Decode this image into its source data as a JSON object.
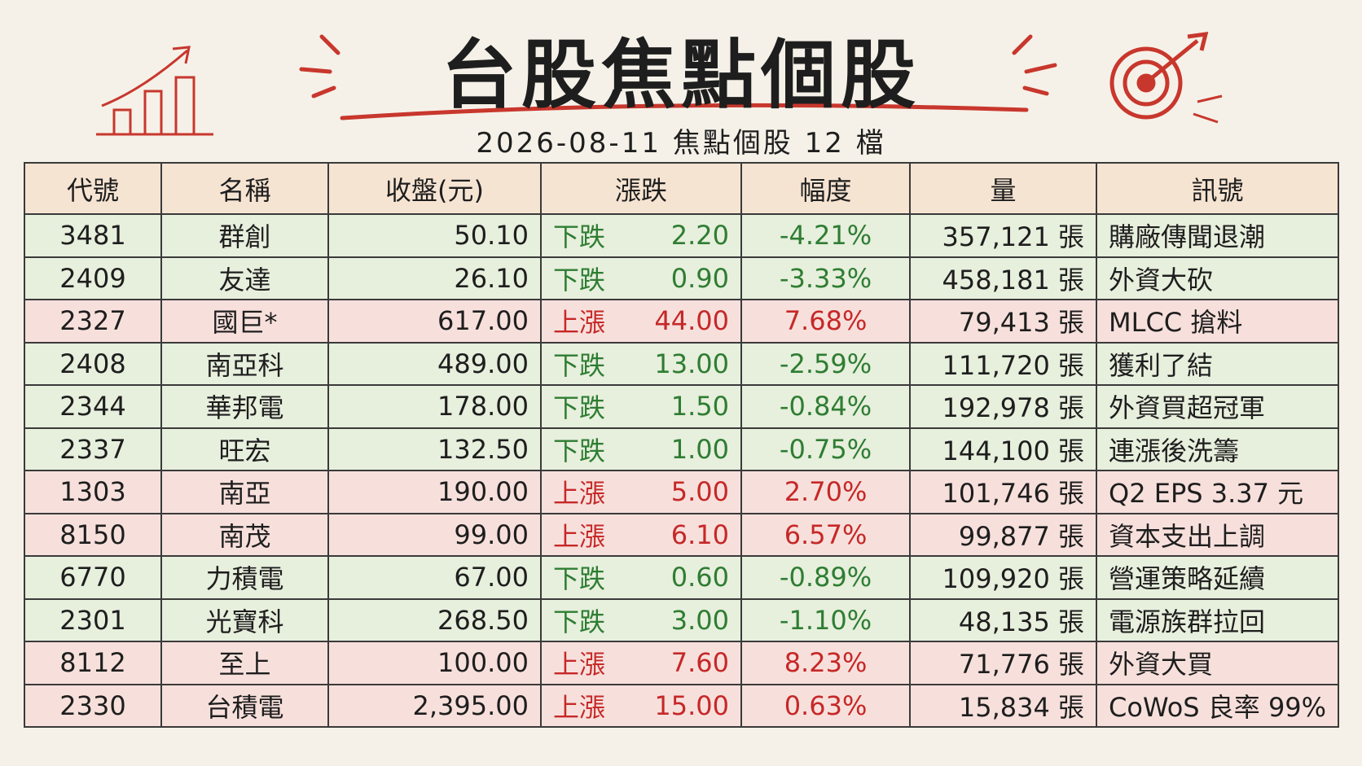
{
  "header": {
    "title": "台股焦點個股",
    "subtitle": "2026-08-11 焦點個股 12 檔"
  },
  "table": {
    "columns": [
      "代號",
      "名稱",
      "收盤(元)",
      "漲跌",
      "幅度",
      "量",
      "訊號"
    ],
    "header_fill": "#f6e4d2",
    "rows": [
      {
        "cells": [
          "3481",
          "群創",
          "50.10",
          "下跌",
          "2.20",
          "-4.21%",
          "357,121 張",
          "購廠傳聞退潮"
        ],
        "fill": "#e7efdd",
        "color": "#2e7d32"
      },
      {
        "cells": [
          "2409",
          "友達",
          "26.10",
          "下跌",
          "0.90",
          "-3.33%",
          "458,181 張",
          "外資大砍"
        ],
        "fill": "#e7efdd",
        "color": "#2e7d32"
      },
      {
        "cells": [
          "2327",
          "國巨*",
          "617.00",
          "上漲",
          "44.00",
          "7.68%",
          "79,413 張",
          "MLCC 搶料"
        ],
        "fill": "#f7e0dc",
        "color": "#c62828"
      },
      {
        "cells": [
          "2408",
          "南亞科",
          "489.00",
          "下跌",
          "13.00",
          "-2.59%",
          "111,720 張",
          "獲利了結"
        ],
        "fill": "#e7efdd",
        "color": "#2e7d32"
      },
      {
        "cells": [
          "2344",
          "華邦電",
          "178.00",
          "下跌",
          "1.50",
          "-0.84%",
          "192,978 張",
          "外資買超冠軍"
        ],
        "fill": "#e7efdd",
        "color": "#2e7d32"
      },
      {
        "cells": [
          "2337",
          "旺宏",
          "132.50",
          "下跌",
          "1.00",
          "-0.75%",
          "144,100 張",
          "連漲後洗籌"
        ],
        "fill": "#e7efdd",
        "color": "#2e7d32"
      },
      {
        "cells": [
          "1303",
          "南亞",
          "190.00",
          "上漲",
          "5.00",
          "2.70%",
          "101,746 張",
          "Q2 EPS 3.37 元"
        ],
        "fill": "#f7e0dc",
        "color": "#c62828"
      },
      {
        "cells": [
          "8150",
          "南茂",
          "99.00",
          "上漲",
          "6.10",
          "6.57%",
          "99,877 張",
          "資本支出上調"
        ],
        "fill": "#f7e0dc",
        "color": "#c62828"
      },
      {
        "cells": [
          "6770",
          "力積電",
          "67.00",
          "下跌",
          "0.60",
          "-0.89%",
          "109,920 張",
          "營運策略延續"
        ],
        "fill": "#e7efdd",
        "color": "#2e7d32"
      },
      {
        "cells": [
          "2301",
          "光寶科",
          "268.50",
          "下跌",
          "3.00",
          "-1.10%",
          "48,135 張",
          "電源族群拉回"
        ],
        "fill": "#e7efdd",
        "color": "#2e7d32"
      },
      {
        "cells": [
          "8112",
          "至上",
          "100.00",
          "上漲",
          "7.60",
          "8.23%",
          "71,776 張",
          "外資大買"
        ],
        "fill": "#f7e0dc",
        "color": "#c62828"
      },
      {
        "cells": [
          "2330",
          "台積電",
          "2,395.00",
          "上漲",
          "15.00",
          "0.63%",
          "15,834 張",
          "CoWoS 良率 99%"
        ],
        "fill": "#f7e0dc",
        "color": "#c62828"
      }
    ]
  }
}
